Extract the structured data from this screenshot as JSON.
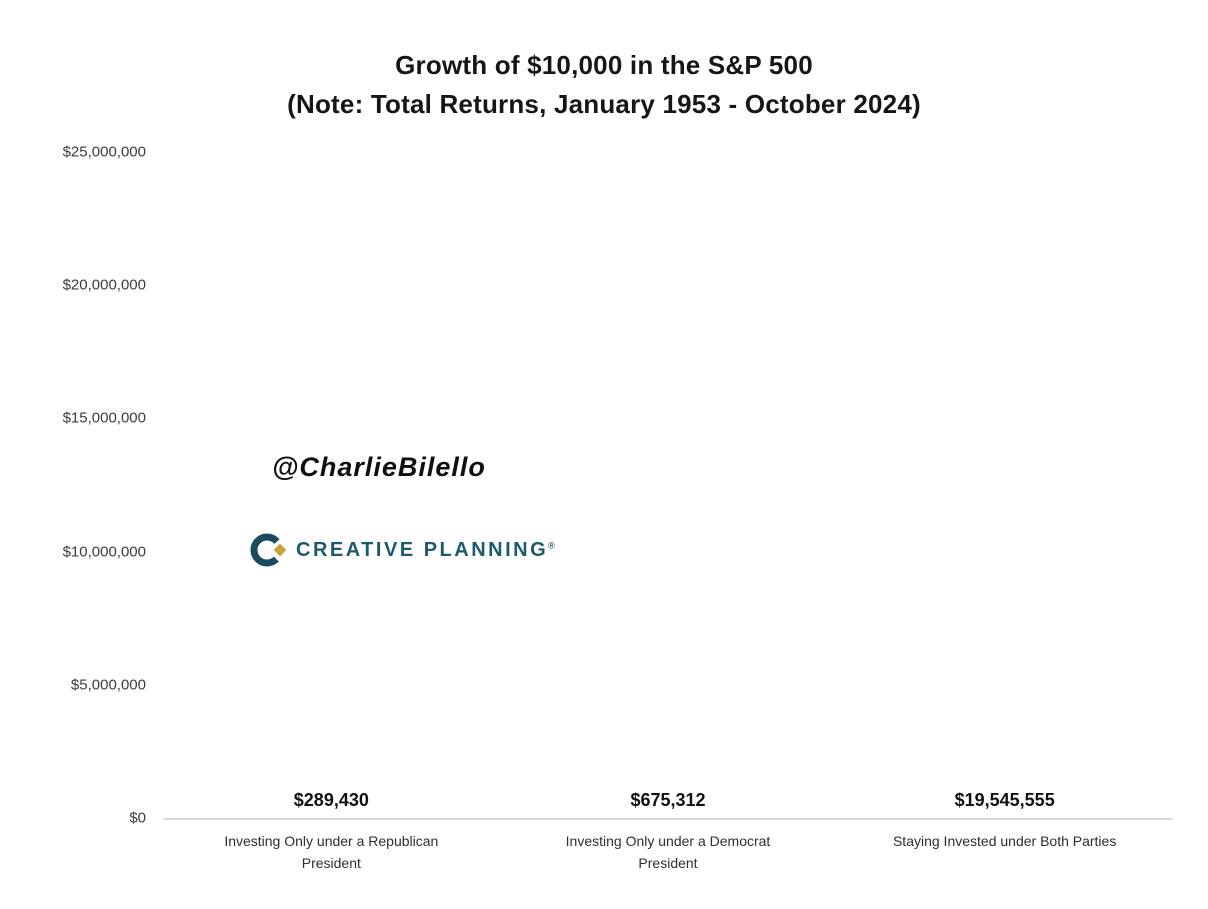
{
  "watermark": "@CharlieBilello",
  "logo": {
    "text": "CREATIVE PLANNING",
    "reg_mark": "®",
    "icon": "creative-planning-c-mark",
    "text_color": "#1E5A6E",
    "mark_color": "#1B4A5E",
    "accent_color": "#C9A13B"
  },
  "chart_data": {
    "type": "bar",
    "title": "Growth of $10,000 in the S&P 500",
    "subtitle": "(Note: Total Returns, January 1953 - October 2024)",
    "categories": [
      "Investing Only under a Republican President",
      "Investing Only under a Democrat President",
      "Staying Invested under Both Parties"
    ],
    "values": [
      289430,
      675312,
      19545555
    ],
    "value_labels": [
      "$289,430",
      "$675,312",
      "$19,545,555"
    ],
    "bar_colors": [
      "#F4594B",
      "#F4594B",
      "#29B8E8"
    ],
    "xlabel": "",
    "ylabel": "",
    "ylim": [
      0,
      25000000
    ],
    "yticks": [
      0,
      5000000,
      10000000,
      15000000,
      20000000,
      25000000
    ],
    "ytick_labels": [
      "$0",
      "$5,000,000",
      "$10,000,000",
      "$15,000,000",
      "$20,000,000",
      "$25,000,000"
    ],
    "grid": false,
    "legend": "none"
  }
}
